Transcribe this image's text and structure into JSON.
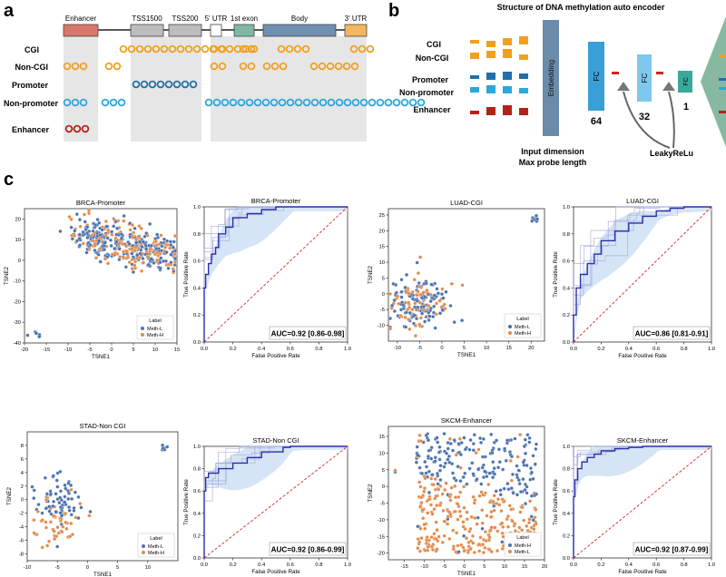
{
  "panel_labels": {
    "a": "a",
    "b": "b",
    "c": "c"
  },
  "colors": {
    "cgi": "#f0a020",
    "noncgi": "#f0a020",
    "promoter": "#1f6fa8",
    "nonpromoter": "#2aa7dc",
    "enhancer": "#b02418",
    "meth_l": "#4a72b0",
    "meth_h": "#e38a4a",
    "roc_line": "#2c2ea8",
    "roc_band": "#cfe0f4",
    "diag": "#d62728"
  },
  "panel_a": {
    "regions": [
      "Enhancer",
      "TSS1500",
      "TSS200",
      "5' UTR",
      "1st exon",
      "Body",
      "3' UTR"
    ],
    "rows": [
      {
        "label": "CGI",
        "color": "#f0a020"
      },
      {
        "label": "Non-CGI",
        "color": "#f0a020"
      },
      {
        "label": "Promoter",
        "color": "#1f6fa8"
      },
      {
        "label": "Non-promoter",
        "color": "#2aa7dc"
      },
      {
        "label": "Enhancer",
        "color": "#b02418"
      }
    ]
  },
  "panel_b": {
    "title": "Structure of DNA methylation auto encoder",
    "inputs": [
      "CGI",
      "Non-CGI",
      "Promoter",
      "Non-promoter",
      "Enhancer"
    ],
    "embedding": "Embedding",
    "fc_label": "FC",
    "fc_sizes": [
      "64",
      "32",
      "1"
    ],
    "input_caption_1": "Input dimension",
    "input_caption_2": "Max probe length",
    "activation": "LeakyReLu"
  },
  "chart_data": [
    {
      "type": "scatter",
      "title": "BRCA-Promoter",
      "xlabel": "TSNE1",
      "ylabel": "TSNE2",
      "xlim": [
        -20,
        15
      ],
      "ylim": [
        -40,
        25
      ],
      "xticks": [
        "-20",
        "-15",
        "-10",
        "-5",
        "0",
        "5",
        "10",
        "15"
      ],
      "yticks": [
        "-40",
        "-30",
        "-20",
        "-10",
        "0",
        "10",
        "20"
      ],
      "legend_title": "Label",
      "legend": [
        "Meth-L",
        "Meth-H"
      ],
      "legend_position": "lower-right"
    },
    {
      "type": "line",
      "title": "BRCA-Promoter",
      "xlabel": "False Positive Rate",
      "ylabel": "True Positive Rate",
      "xlim": [
        0,
        1
      ],
      "ylim": [
        0,
        1
      ],
      "xticks": [
        "0.0",
        "0.2",
        "0.4",
        "0.6",
        "0.8",
        "1.0"
      ],
      "yticks": [
        "0.0",
        "0.2",
        "0.4",
        "0.6",
        "0.8",
        "1.0"
      ],
      "auc_text": "AUC=0.92 [0.86-0.98]",
      "mean_roc": [
        [
          0,
          0
        ],
        [
          0.01,
          0.4
        ],
        [
          0.03,
          0.5
        ],
        [
          0.05,
          0.58
        ],
        [
          0.08,
          0.65
        ],
        [
          0.1,
          0.7
        ],
        [
          0.15,
          0.8
        ],
        [
          0.2,
          0.85
        ],
        [
          0.3,
          0.92
        ],
        [
          0.4,
          0.95
        ],
        [
          0.5,
          0.98
        ],
        [
          0.6,
          1
        ],
        [
          1,
          1
        ]
      ]
    },
    {
      "type": "scatter",
      "title": "LUAD-CGI",
      "xlabel": "TSNE1",
      "ylabel": "TSNE2",
      "xlim": [
        -12,
        23
      ],
      "ylim": [
        -15,
        27
      ],
      "xticks": [
        "-10",
        "-5",
        "0",
        "5",
        "10",
        "15",
        "20"
      ],
      "yticks": [
        "-10",
        "-5",
        "0",
        "5",
        "10",
        "15",
        "20",
        "25"
      ],
      "legend_title": "Label",
      "legend": [
        "Meth-L",
        "Meth-H"
      ],
      "legend_position": "lower-right"
    },
    {
      "type": "line",
      "title": "LUAD-CGI",
      "xlabel": "False Positive Rate",
      "ylabel": "True Positive Rate",
      "xlim": [
        0,
        1
      ],
      "ylim": [
        0,
        1
      ],
      "xticks": [
        "0.0",
        "0.2",
        "0.4",
        "0.6",
        "0.8",
        "1.0"
      ],
      "yticks": [
        "0.0",
        "0.2",
        "0.4",
        "0.6",
        "0.8",
        "1.0"
      ],
      "auc_text": "AUC=0.86 [0.81-0.91]",
      "mean_roc": [
        [
          0,
          0
        ],
        [
          0.02,
          0.2
        ],
        [
          0.05,
          0.4
        ],
        [
          0.1,
          0.5
        ],
        [
          0.15,
          0.58
        ],
        [
          0.2,
          0.65
        ],
        [
          0.3,
          0.75
        ],
        [
          0.4,
          0.82
        ],
        [
          0.5,
          0.88
        ],
        [
          0.6,
          0.93
        ],
        [
          0.7,
          0.97
        ],
        [
          0.8,
          0.99
        ],
        [
          1,
          1
        ]
      ]
    },
    {
      "type": "scatter",
      "title": "STAD-Non CGI",
      "xlabel": "TSNE1",
      "ylabel": "TSNE2",
      "xlim": [
        -10,
        15
      ],
      "ylim": [
        -9,
        10
      ],
      "xticks": [
        "-10",
        "-5",
        "0",
        "5",
        "10"
      ],
      "yticks": [
        "-8",
        "-6",
        "-4",
        "-2",
        "0",
        "2",
        "4",
        "6",
        "8"
      ],
      "legend_title": "Label",
      "legend": [
        "Meth-L",
        "Meth-H"
      ],
      "legend_position": "lower-right"
    },
    {
      "type": "line",
      "title": "STAD-Non CGI",
      "xlabel": "False Positive Rate",
      "ylabel": "True Positive Rate",
      "xlim": [
        0,
        1
      ],
      "ylim": [
        0,
        1
      ],
      "xticks": [
        "0.0",
        "0.2",
        "0.4",
        "0.6",
        "0.8",
        "1.0"
      ],
      "yticks": [
        "0.0",
        "0.2",
        "0.4",
        "0.6",
        "0.8",
        "1.0"
      ],
      "auc_text": "AUC=0.92 [0.86-0.99]",
      "mean_roc": [
        [
          0,
          0
        ],
        [
          0.01,
          0.6
        ],
        [
          0.03,
          0.72
        ],
        [
          0.1,
          0.76
        ],
        [
          0.2,
          0.8
        ],
        [
          0.3,
          0.85
        ],
        [
          0.4,
          0.9
        ],
        [
          0.55,
          0.95
        ],
        [
          0.6,
          0.99
        ],
        [
          0.7,
          1
        ],
        [
          1,
          1
        ]
      ]
    },
    {
      "type": "scatter",
      "title": "SKCM-Enhancer",
      "xlabel": "TSNE1",
      "ylabel": "TSNE2",
      "xlim": [
        -19,
        20
      ],
      "ylim": [
        -22,
        18
      ],
      "xticks": [
        "-15",
        "-10",
        "-5",
        "0",
        "5",
        "10",
        "15",
        "20"
      ],
      "yticks": [
        "-20",
        "-15",
        "-10",
        "-5",
        "0",
        "5",
        "10",
        "15"
      ],
      "legend_title": "Label",
      "legend": [
        "Meth-H",
        "Meth-L"
      ],
      "legend_position": "lower-right"
    },
    {
      "type": "line",
      "title": "SKCM-Enhancer",
      "xlabel": "False Positive Rate",
      "ylabel": "True Positive Rate",
      "xlim": [
        0,
        1
      ],
      "ylim": [
        0,
        1
      ],
      "xticks": [
        "0.0",
        "0.2",
        "0.4",
        "0.6",
        "0.8",
        "1.0"
      ],
      "yticks": [
        "0.0",
        "0.2",
        "0.4",
        "0.6",
        "0.8",
        "1.0"
      ],
      "auc_text": "AUC=0.92 [0.87-0.99]",
      "mean_roc": [
        [
          0,
          0
        ],
        [
          0.01,
          0.55
        ],
        [
          0.03,
          0.7
        ],
        [
          0.06,
          0.8
        ],
        [
          0.1,
          0.86
        ],
        [
          0.15,
          0.9
        ],
        [
          0.2,
          0.93
        ],
        [
          0.3,
          0.96
        ],
        [
          0.4,
          0.98
        ],
        [
          0.5,
          0.99
        ],
        [
          0.6,
          1
        ],
        [
          1,
          1
        ]
      ]
    }
  ]
}
